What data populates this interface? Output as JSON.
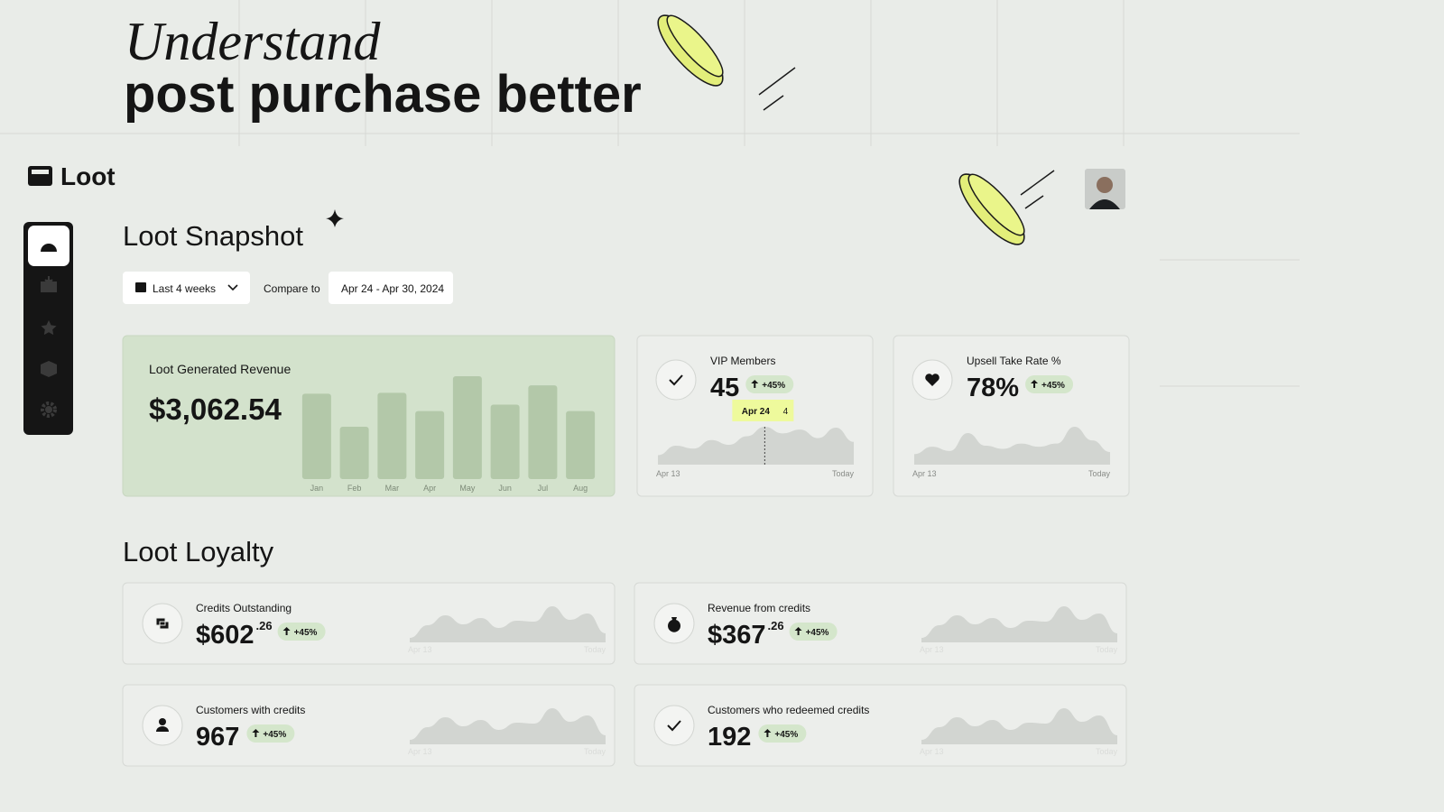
{
  "hero": {
    "line1": "Understand",
    "line2": "post purchase better"
  },
  "brand": "Loot",
  "snapshot": {
    "title": "Loot Snapshot",
    "period": "Last 4 weeks",
    "compare_label": "Compare to",
    "compare_range": "Apr 24 - Apr 30, 2024",
    "revenue": {
      "title": "Loot Generated Revenue",
      "total": "$3,062.54",
      "chart_data": {
        "type": "bar",
        "categories": [
          "Jan",
          "Feb",
          "Mar",
          "Apr",
          "May",
          "Jun",
          "Jul",
          "Aug"
        ],
        "values": [
          93,
          57,
          94,
          74,
          112,
          81,
          102,
          74
        ],
        "color": "#b3c8a9"
      }
    },
    "metrics": [
      {
        "title": "VIP Members",
        "value": "45",
        "delta": "+45%",
        "chart_data": {
          "type": "area",
          "categories": [
            "Apr 13",
            null,
            null,
            null,
            null,
            null,
            "Apr 24",
            null,
            null,
            null,
            null,
            "Today"
          ],
          "values": [
            1,
            2,
            1.7,
            2.6,
            2.1,
            3,
            4,
            3.3,
            3.7,
            2.8,
            3.9,
            2.4
          ],
          "color": "#d2d5d1"
        }
      },
      {
        "title": "Upsell Take Rate %",
        "value": "78%",
        "delta": "+45%",
        "chart_data": {
          "type": "area",
          "categories": [
            "Apr 13",
            null,
            null,
            null,
            null,
            null,
            null,
            null,
            null,
            null,
            null,
            "Today"
          ],
          "values": [
            1,
            1.7,
            1.3,
            3,
            1.8,
            1.5,
            2,
            1.7,
            2,
            3.6,
            2.3,
            1.2
          ],
          "color": "#d2d5d1"
        }
      }
    ]
  },
  "loyalty": {
    "title": "Loot Loyalty",
    "metrics": [
      {
        "title": "Credits Outstanding",
        "value": "$602",
        "cents": ".26",
        "delta": "+45%",
        "chart_data": {
          "type": "area",
          "categories": [
            "Apr 13",
            null,
            null,
            null,
            null,
            null,
            null,
            null,
            null,
            null,
            null,
            "Today"
          ],
          "values": [
            0.5,
            1.9,
            3,
            2,
            2.7,
            1.6,
            2.4,
            2.3,
            4,
            2.5,
            3.2,
            1
          ],
          "color": "#d2d5d1"
        }
      },
      {
        "title": "Revenue from credits",
        "value": "$367",
        "cents": ".26",
        "delta": "+45%",
        "chart_data": {
          "type": "area",
          "categories": [
            "Apr 13",
            null,
            null,
            null,
            null,
            null,
            null,
            null,
            null,
            null,
            null,
            "Today"
          ],
          "values": [
            0.5,
            1.9,
            3,
            2,
            2.7,
            1.6,
            2.4,
            2.3,
            4,
            2.5,
            3.2,
            1
          ],
          "color": "#d2d5d1"
        }
      },
      {
        "title": "Customers with credits",
        "value": "967",
        "delta": "+45%",
        "chart_data": {
          "type": "area",
          "categories": [
            "Apr 13",
            null,
            null,
            null,
            null,
            null,
            null,
            null,
            null,
            null,
            null,
            "Today"
          ],
          "values": [
            0.5,
            1.9,
            3,
            2,
            2.7,
            1.6,
            2.4,
            2.3,
            4,
            2.5,
            3.2,
            1
          ],
          "color": "#d2d5d1"
        }
      },
      {
        "title": "Customers who redeemed credits",
        "value": "192",
        "delta": "+45%",
        "chart_data": {
          "type": "area",
          "categories": [
            "Apr 13",
            null,
            null,
            null,
            null,
            null,
            null,
            null,
            null,
            null,
            null,
            "Today"
          ],
          "values": [
            0.5,
            1.9,
            3,
            2,
            2.7,
            1.6,
            2.4,
            2.3,
            4,
            2.5,
            3.2,
            1
          ],
          "color": "#d2d5d1"
        }
      }
    ]
  }
}
